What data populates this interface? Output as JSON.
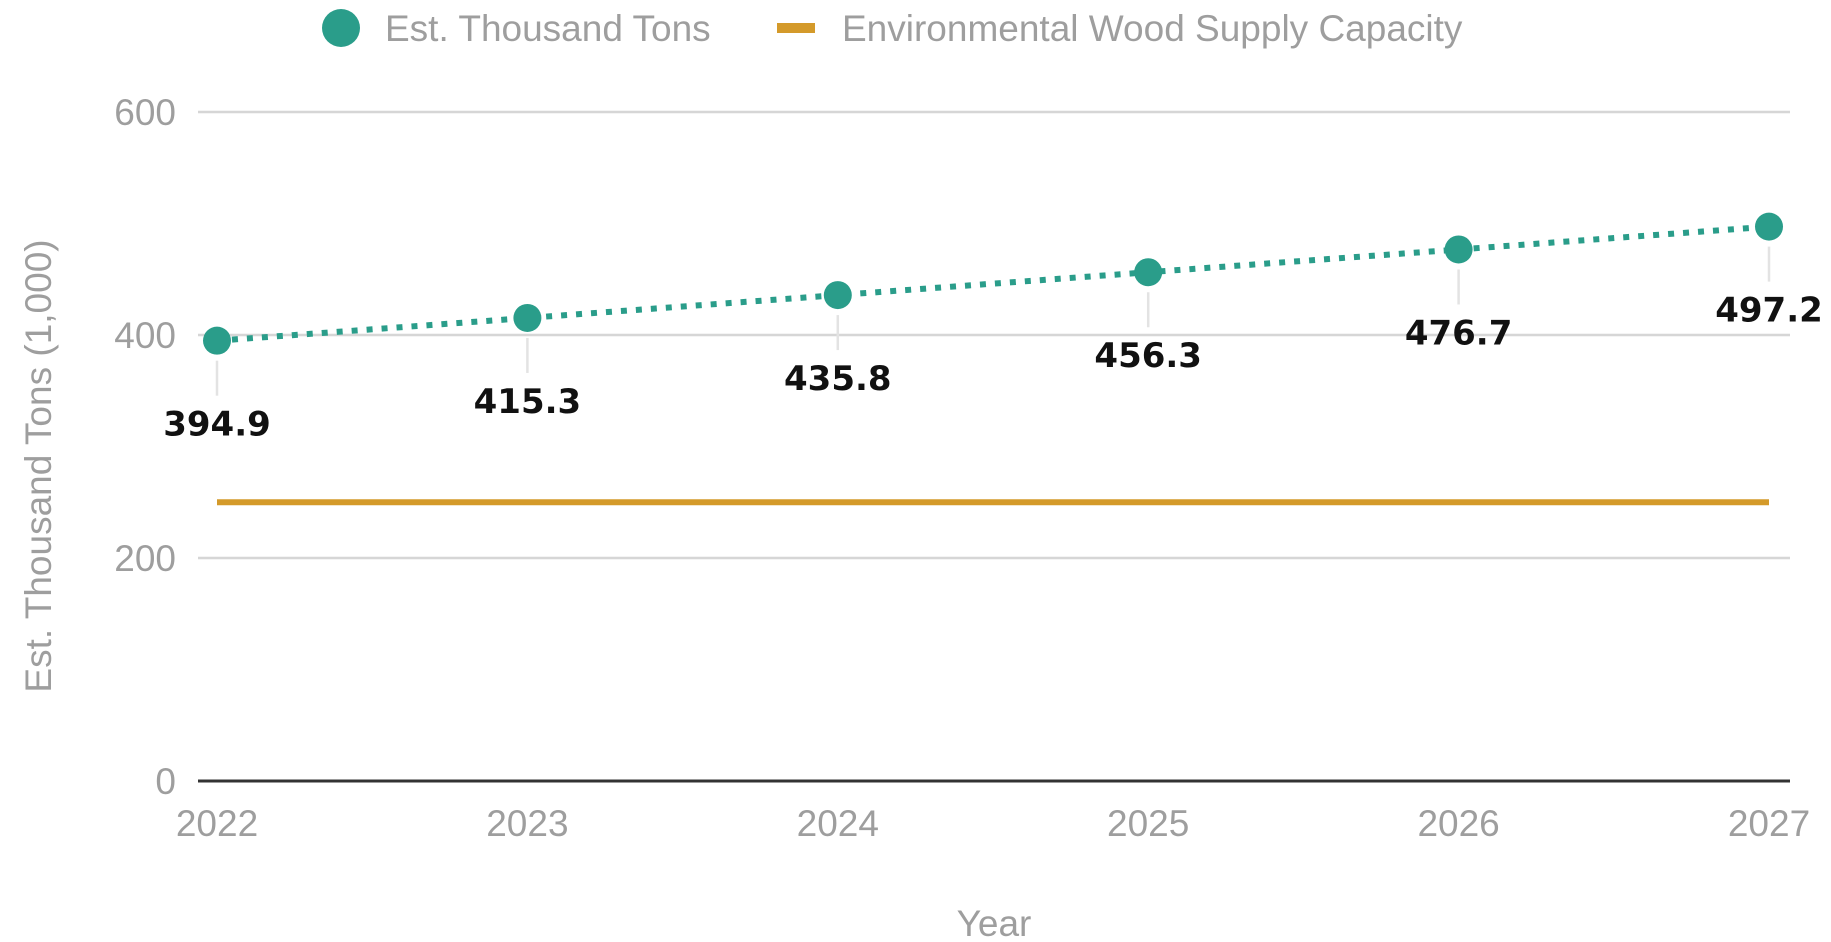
{
  "colors": {
    "series_marker": "#2a9d8a",
    "capacity_line": "#d49a2a",
    "gridline": "#d6d6d6",
    "baseline": "#333333",
    "tick_text": "#9e9e9e",
    "data_label_text": "#111111",
    "leader_line": "#e3e3e3"
  },
  "chart_data": {
    "type": "line",
    "title": "",
    "xlabel": "Year",
    "ylabel": "Est. Thousand Tons (1,000)",
    "x": [
      "2022",
      "2023",
      "2024",
      "2025",
      "2026",
      "2027"
    ],
    "ylim": [
      0,
      600
    ],
    "yticks": [
      0,
      200,
      400,
      600
    ],
    "grid": true,
    "legend_position": "top",
    "series": [
      {
        "name": "Est. Thousand Tons",
        "style": "dotted line with circle markers",
        "values": [
          394.9,
          415.3,
          435.8,
          456.3,
          476.7,
          497.2
        ],
        "data_labels": [
          "394.9",
          "415.3",
          "435.8",
          "456.3",
          "476.7",
          "497.2"
        ]
      },
      {
        "name": "Environmental Wood Supply Capacity",
        "style": "solid line",
        "values": [
          250,
          250,
          250,
          250,
          250,
          250
        ]
      }
    ]
  }
}
